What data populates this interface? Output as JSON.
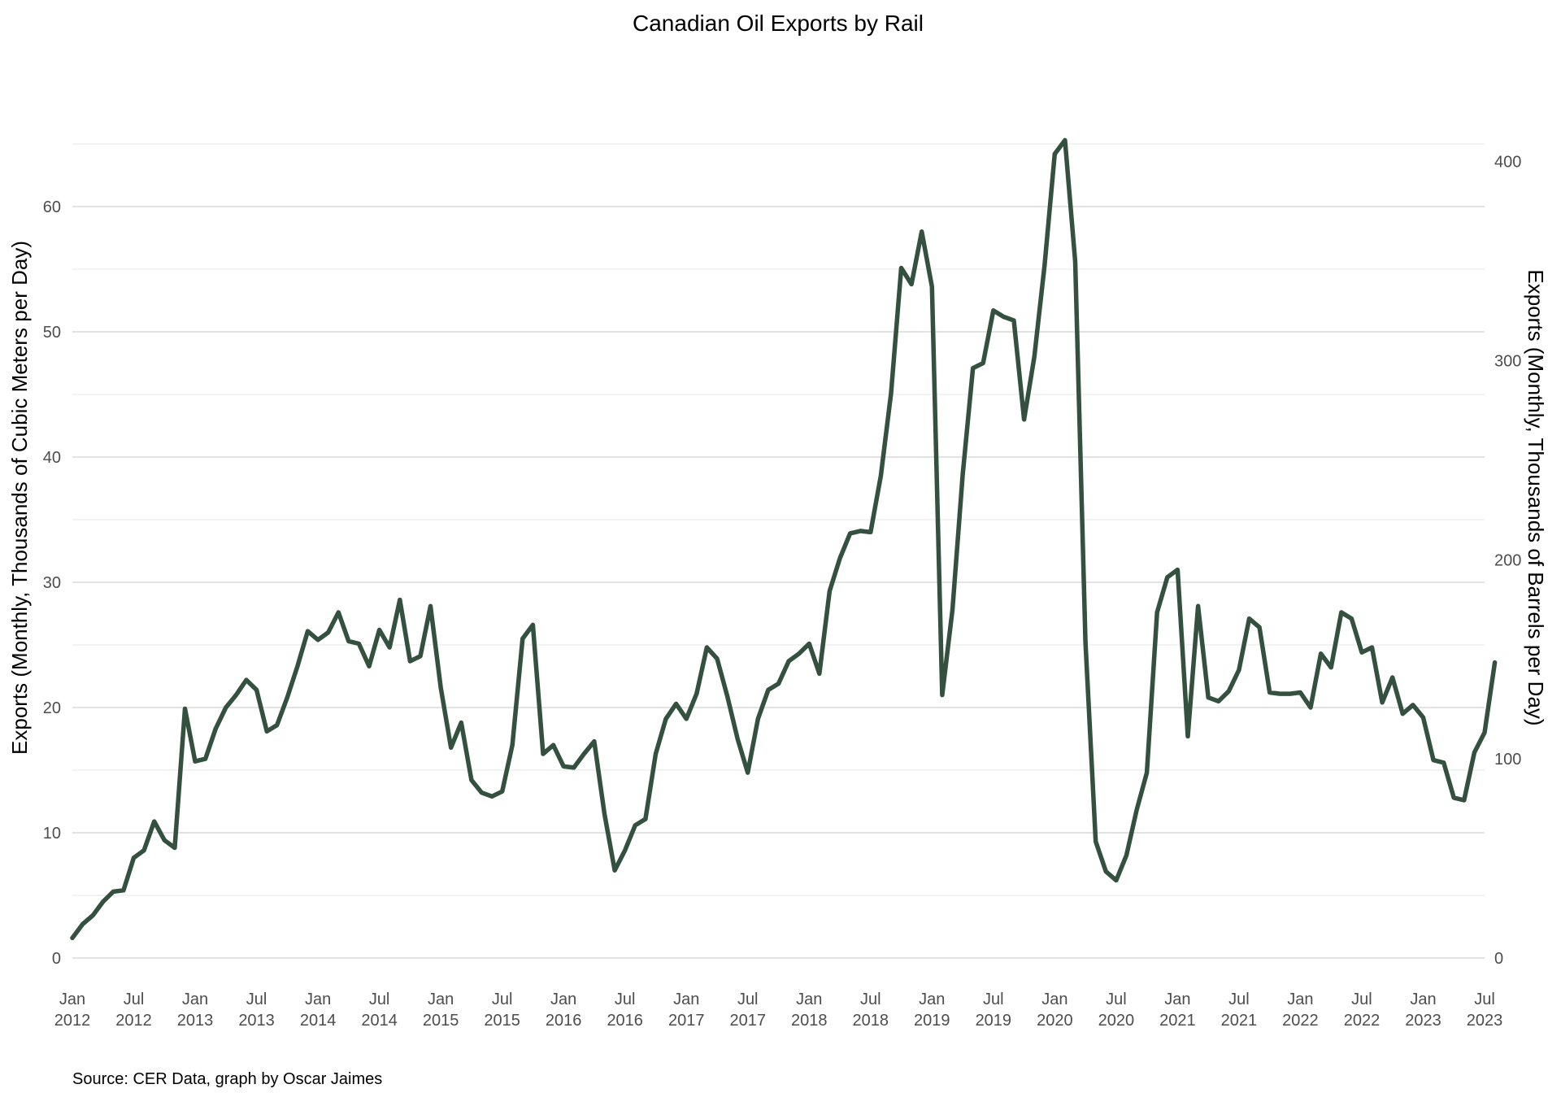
{
  "chart_data": {
    "type": "line",
    "title": "Canadian Oil Exports by Rail",
    "ylabel": "Exports (Monthly, Thousands of Cubic Meters per Day)",
    "y2label": "Exports (Monthly, Thousands of Barrels per Day)",
    "caption": "Source: CER Data, graph by Oscar Jaimes",
    "xlim": [
      "2012-01",
      "2023-07"
    ],
    "ylim": [
      0,
      65
    ],
    "y_ticks": [
      0,
      10,
      20,
      30,
      40,
      50,
      60
    ],
    "y2_ticks": [
      0,
      100,
      200,
      300,
      400
    ],
    "y2_per_y": 6.2898,
    "grid": true,
    "line_color": "#34503f",
    "x_ticks": [
      {
        "date": "2012-01",
        "label": [
          "Jan",
          "2012"
        ]
      },
      {
        "date": "2012-07",
        "label": [
          "Jul",
          "2012"
        ]
      },
      {
        "date": "2013-01",
        "label": [
          "Jan",
          "2013"
        ]
      },
      {
        "date": "2013-07",
        "label": [
          "Jul",
          "2013"
        ]
      },
      {
        "date": "2014-01",
        "label": [
          "Jan",
          "2014"
        ]
      },
      {
        "date": "2014-07",
        "label": [
          "Jul",
          "2014"
        ]
      },
      {
        "date": "2015-01",
        "label": [
          "Jan",
          "2015"
        ]
      },
      {
        "date": "2015-07",
        "label": [
          "Jul",
          "2015"
        ]
      },
      {
        "date": "2016-01",
        "label": [
          "Jan",
          "2016"
        ]
      },
      {
        "date": "2016-07",
        "label": [
          "Jul",
          "2016"
        ]
      },
      {
        "date": "2017-01",
        "label": [
          "Jan",
          "2017"
        ]
      },
      {
        "date": "2017-07",
        "label": [
          "Jul",
          "2017"
        ]
      },
      {
        "date": "2018-01",
        "label": [
          "Jan",
          "2018"
        ]
      },
      {
        "date": "2018-07",
        "label": [
          "Jul",
          "2018"
        ]
      },
      {
        "date": "2019-01",
        "label": [
          "Jan",
          "2019"
        ]
      },
      {
        "date": "2019-07",
        "label": [
          "Jul",
          "2019"
        ]
      },
      {
        "date": "2020-01",
        "label": [
          "Jan",
          "2020"
        ]
      },
      {
        "date": "2020-07",
        "label": [
          "Jul",
          "2020"
        ]
      },
      {
        "date": "2021-01",
        "label": [
          "Jan",
          "2021"
        ]
      },
      {
        "date": "2021-07",
        "label": [
          "Jul",
          "2021"
        ]
      },
      {
        "date": "2022-01",
        "label": [
          "Jan",
          "2022"
        ]
      },
      {
        "date": "2022-07",
        "label": [
          "Jul",
          "2022"
        ]
      },
      {
        "date": "2023-01",
        "label": [
          "Jan",
          "2023"
        ]
      },
      {
        "date": "2023-07",
        "label": [
          "Jul",
          "2023"
        ]
      }
    ],
    "series": [
      {
        "points": [
          [
            "2012-01",
            1.6
          ],
          [
            "2012-02",
            2.7
          ],
          [
            "2012-03",
            3.4
          ],
          [
            "2012-04",
            4.5
          ],
          [
            "2012-05",
            5.3
          ],
          [
            "2012-06",
            5.4
          ],
          [
            "2012-07",
            8.0
          ],
          [
            "2012-08",
            8.6
          ],
          [
            "2012-09",
            10.9
          ],
          [
            "2012-10",
            9.4
          ],
          [
            "2012-11",
            8.8
          ],
          [
            "2012-12",
            19.9
          ],
          [
            "2013-01",
            15.7
          ],
          [
            "2013-02",
            15.9
          ],
          [
            "2013-03",
            18.3
          ],
          [
            "2013-04",
            20.0
          ],
          [
            "2013-05",
            21.0
          ],
          [
            "2013-06",
            22.2
          ],
          [
            "2013-07",
            21.4
          ],
          [
            "2013-08",
            18.1
          ],
          [
            "2013-09",
            18.6
          ],
          [
            "2013-10",
            20.8
          ],
          [
            "2013-11",
            23.3
          ],
          [
            "2013-12",
            26.1
          ],
          [
            "2014-01",
            25.4
          ],
          [
            "2014-02",
            26.0
          ],
          [
            "2014-03",
            27.6
          ],
          [
            "2014-04",
            25.3
          ],
          [
            "2014-05",
            25.1
          ],
          [
            "2014-06",
            23.3
          ],
          [
            "2014-07",
            26.2
          ],
          [
            "2014-08",
            24.8
          ],
          [
            "2014-09",
            28.6
          ],
          [
            "2014-10",
            23.7
          ],
          [
            "2014-11",
            24.1
          ],
          [
            "2014-12",
            28.1
          ],
          [
            "2015-01",
            21.6
          ],
          [
            "2015-02",
            16.8
          ],
          [
            "2015-03",
            18.8
          ],
          [
            "2015-04",
            14.2
          ],
          [
            "2015-05",
            13.2
          ],
          [
            "2015-06",
            12.9
          ],
          [
            "2015-07",
            13.3
          ],
          [
            "2015-08",
            17.0
          ],
          [
            "2015-09",
            25.5
          ],
          [
            "2015-10",
            26.6
          ],
          [
            "2015-11",
            16.3
          ],
          [
            "2015-12",
            17.0
          ],
          [
            "2016-01",
            15.3
          ],
          [
            "2016-02",
            15.2
          ],
          [
            "2016-03",
            16.3
          ],
          [
            "2016-04",
            17.3
          ],
          [
            "2016-05",
            11.5
          ],
          [
            "2016-06",
            7.0
          ],
          [
            "2016-07",
            8.6
          ],
          [
            "2016-08",
            10.6
          ],
          [
            "2016-09",
            11.1
          ],
          [
            "2016-10",
            16.3
          ],
          [
            "2016-11",
            19.1
          ],
          [
            "2016-12",
            20.3
          ],
          [
            "2017-01",
            19.1
          ],
          [
            "2017-02",
            21.1
          ],
          [
            "2017-03",
            24.8
          ],
          [
            "2017-04",
            23.9
          ],
          [
            "2017-05",
            20.9
          ],
          [
            "2017-06",
            17.5
          ],
          [
            "2017-07",
            14.8
          ],
          [
            "2017-08",
            19.1
          ],
          [
            "2017-09",
            21.4
          ],
          [
            "2017-10",
            21.9
          ],
          [
            "2017-11",
            23.7
          ],
          [
            "2017-12",
            24.3
          ],
          [
            "2018-01",
            25.1
          ],
          [
            "2018-02",
            22.7
          ],
          [
            "2018-03",
            29.3
          ],
          [
            "2018-04",
            31.9
          ],
          [
            "2018-05",
            33.9
          ],
          [
            "2018-06",
            34.1
          ],
          [
            "2018-07",
            34.0
          ],
          [
            "2018-08",
            38.5
          ],
          [
            "2018-09",
            45.1
          ],
          [
            "2018-10",
            55.1
          ],
          [
            "2018-11",
            53.8
          ],
          [
            "2018-12",
            58.0
          ],
          [
            "2019-01",
            53.6
          ],
          [
            "2019-02",
            21.0
          ],
          [
            "2019-03",
            27.8
          ],
          [
            "2019-04",
            38.6
          ],
          [
            "2019-05",
            47.1
          ],
          [
            "2019-06",
            47.5
          ],
          [
            "2019-07",
            51.7
          ],
          [
            "2019-08",
            51.2
          ],
          [
            "2019-09",
            50.9
          ],
          [
            "2019-10",
            43.0
          ],
          [
            "2019-11",
            48.0
          ],
          [
            "2019-12",
            55.3
          ],
          [
            "2020-01",
            64.2
          ],
          [
            "2020-02",
            65.3
          ],
          [
            "2020-03",
            55.6
          ],
          [
            "2020-04",
            25.2
          ],
          [
            "2020-05",
            9.3
          ],
          [
            "2020-06",
            6.9
          ],
          [
            "2020-07",
            6.2
          ],
          [
            "2020-08",
            8.2
          ],
          [
            "2020-09",
            11.8
          ],
          [
            "2020-10",
            14.8
          ],
          [
            "2020-11",
            27.6
          ],
          [
            "2020-12",
            30.4
          ],
          [
            "2021-01",
            31.0
          ],
          [
            "2021-02",
            17.7
          ],
          [
            "2021-03",
            28.1
          ],
          [
            "2021-04",
            20.8
          ],
          [
            "2021-05",
            20.5
          ],
          [
            "2021-06",
            21.3
          ],
          [
            "2021-07",
            23.0
          ],
          [
            "2021-08",
            27.1
          ],
          [
            "2021-09",
            26.4
          ],
          [
            "2021-10",
            21.2
          ],
          [
            "2021-11",
            21.1
          ],
          [
            "2021-12",
            21.1
          ],
          [
            "2022-01",
            21.2
          ],
          [
            "2022-02",
            20.0
          ],
          [
            "2022-03",
            24.3
          ],
          [
            "2022-04",
            23.2
          ],
          [
            "2022-05",
            27.6
          ],
          [
            "2022-06",
            27.1
          ],
          [
            "2022-07",
            24.4
          ],
          [
            "2022-08",
            24.8
          ],
          [
            "2022-09",
            20.4
          ],
          [
            "2022-10",
            22.4
          ],
          [
            "2022-11",
            19.5
          ],
          [
            "2022-12",
            20.2
          ],
          [
            "2023-01",
            19.2
          ],
          [
            "2023-02",
            15.8
          ],
          [
            "2023-03",
            15.6
          ],
          [
            "2023-04",
            12.8
          ],
          [
            "2023-05",
            12.6
          ],
          [
            "2023-06",
            16.4
          ],
          [
            "2023-07",
            18.0
          ],
          [
            "2023-08",
            23.6
          ]
        ]
      }
    ]
  }
}
